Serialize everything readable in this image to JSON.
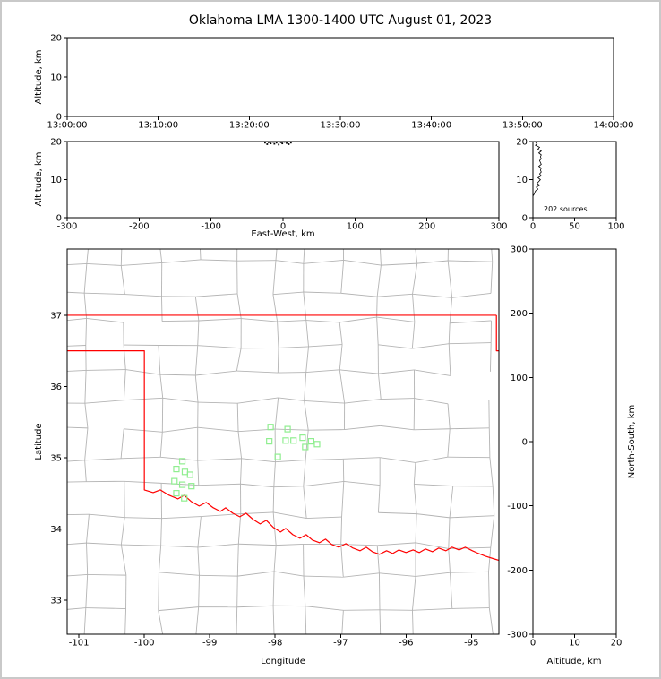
{
  "title": "Oklahoma LMA 1300-1400 UTC August 01, 2023",
  "colors": {
    "background": "#ffffff",
    "frame_border": "#c9c9c9",
    "axis": "#000000",
    "county_line": "#b4b4b4",
    "state_border": "#ff0000",
    "source_marker": "#90ee90",
    "histogram_trace": "#000000"
  },
  "chart_data": [
    {
      "id": "time_height",
      "type": "scatter",
      "xlabel": "",
      "ylabel": "Altitude, km",
      "x_tick_labels": [
        "13:00:00",
        "13:10:00",
        "13:20:00",
        "13:30:00",
        "13:40:00",
        "13:50:00",
        "14:00:00"
      ],
      "ylim": [
        0,
        20
      ],
      "yticks": [
        0,
        10,
        20
      ],
      "points": []
    },
    {
      "id": "ew_height",
      "type": "scatter",
      "xlabel": "East-West, km",
      "ylabel": "Altitude, km",
      "xlim": [
        -300,
        300
      ],
      "xticks": [
        -300,
        -200,
        -100,
        0,
        100,
        200,
        300
      ],
      "ylim": [
        0,
        20
      ],
      "yticks": [
        0,
        10,
        20
      ],
      "points": [
        [
          -25,
          19.7
        ],
        [
          -22,
          19.3
        ],
        [
          -20,
          19.8
        ],
        [
          -17,
          19.5
        ],
        [
          -14,
          19.9
        ],
        [
          -12,
          19.4
        ],
        [
          -9,
          19.7
        ],
        [
          -6,
          19.2
        ],
        [
          -3,
          19.8
        ],
        [
          -1,
          19.5
        ],
        [
          2,
          19.9
        ],
        [
          5,
          19.6
        ],
        [
          8,
          19.3
        ],
        [
          11,
          19.7
        ]
      ]
    },
    {
      "id": "altitude_histogram",
      "type": "line",
      "annotation": "202 sources",
      "xlim": [
        0,
        100
      ],
      "xticks": [
        0,
        50,
        100
      ],
      "ylim": [
        0,
        20
      ],
      "yticks": [
        0,
        10,
        20
      ],
      "altitudes": [
        20,
        19.5,
        19,
        18.5,
        18,
        17.5,
        17,
        16.5,
        16,
        15.5,
        15,
        14.5,
        14,
        13.5,
        13,
        12.5,
        12,
        11.5,
        11,
        10.5,
        10,
        9.5,
        9,
        8.5,
        8,
        7.5,
        7,
        6.5,
        6
      ],
      "counts": [
        2,
        5,
        3,
        8,
        6,
        10,
        7,
        10,
        9,
        10,
        8,
        9,
        10,
        7,
        10,
        9,
        10,
        8,
        10,
        6,
        9,
        7,
        5,
        8,
        4,
        6,
        3,
        2,
        1
      ]
    },
    {
      "id": "plan_map",
      "type": "scatter",
      "xlabel": "Longitude",
      "ylabel": "Latitude",
      "xlim": [
        -101.18,
        -94.58
      ],
      "xticks": [
        -101,
        -100,
        -99,
        -98,
        -97,
        -96,
        -95
      ],
      "ylim": [
        32.52,
        37.93
      ],
      "yticks": [
        33,
        34,
        35,
        36,
        37
      ],
      "sources": [
        [
          -99.42,
          34.95
        ],
        [
          -99.51,
          34.84
        ],
        [
          -99.38,
          34.8
        ],
        [
          -99.3,
          34.76
        ],
        [
          -99.54,
          34.67
        ],
        [
          -99.42,
          34.62
        ],
        [
          -99.28,
          34.6
        ],
        [
          -99.51,
          34.5
        ],
        [
          -99.39,
          34.43
        ],
        [
          -98.07,
          35.43
        ],
        [
          -97.81,
          35.4
        ],
        [
          -97.84,
          35.24
        ],
        [
          -97.58,
          35.28
        ],
        [
          -97.72,
          35.24
        ],
        [
          -98.09,
          35.23
        ],
        [
          -97.45,
          35.23
        ],
        [
          -97.36,
          35.19
        ],
        [
          -97.54,
          35.15
        ],
        [
          -97.96,
          35.01
        ]
      ],
      "state_border": {
        "kansas_line": [
          [
            -101.18,
            37
          ],
          [
            -94.618,
            37
          ]
        ],
        "missouri_corner": [
          [
            -94.618,
            37
          ],
          [
            -94.618,
            36.5
          ],
          [
            -94.45,
            36.5
          ]
        ],
        "west_and_red_river": [
          [
            -101.18,
            36.5
          ],
          [
            -100,
            36.5
          ],
          [
            -100,
            34.547
          ],
          [
            -99.865,
            34.509
          ],
          [
            -99.757,
            34.547
          ],
          [
            -99.622,
            34.472
          ],
          [
            -99.486,
            34.421
          ],
          [
            -99.392,
            34.472
          ],
          [
            -99.284,
            34.384
          ],
          [
            -99.162,
            34.321
          ],
          [
            -99.054,
            34.371
          ],
          [
            -98.946,
            34.296
          ],
          [
            -98.838,
            34.245
          ],
          [
            -98.757,
            34.296
          ],
          [
            -98.649,
            34.22
          ],
          [
            -98.541,
            34.17
          ],
          [
            -98.446,
            34.22
          ],
          [
            -98.338,
            34.132
          ],
          [
            -98.23,
            34.069
          ],
          [
            -98.135,
            34.119
          ],
          [
            -98.027,
            34.019
          ],
          [
            -97.919,
            33.956
          ],
          [
            -97.838,
            34.006
          ],
          [
            -97.73,
            33.918
          ],
          [
            -97.622,
            33.868
          ],
          [
            -97.527,
            33.918
          ],
          [
            -97.432,
            33.843
          ],
          [
            -97.324,
            33.805
          ],
          [
            -97.23,
            33.855
          ],
          [
            -97.135,
            33.78
          ],
          [
            -97.027,
            33.742
          ],
          [
            -96.919,
            33.792
          ],
          [
            -96.811,
            33.73
          ],
          [
            -96.703,
            33.692
          ],
          [
            -96.608,
            33.742
          ],
          [
            -96.514,
            33.679
          ],
          [
            -96.405,
            33.642
          ],
          [
            -96.297,
            33.692
          ],
          [
            -96.203,
            33.654
          ],
          [
            -96.108,
            33.704
          ],
          [
            -96.0,
            33.667
          ],
          [
            -95.892,
            33.704
          ],
          [
            -95.797,
            33.667
          ],
          [
            -95.703,
            33.717
          ],
          [
            -95.595,
            33.679
          ],
          [
            -95.5,
            33.73
          ],
          [
            -95.392,
            33.692
          ],
          [
            -95.297,
            33.742
          ],
          [
            -95.189,
            33.704
          ],
          [
            -95.095,
            33.742
          ],
          [
            -94.986,
            33.692
          ],
          [
            -94.892,
            33.654
          ],
          [
            -94.784,
            33.616
          ],
          [
            -94.66,
            33.58
          ],
          [
            -94.55,
            33.55
          ]
        ]
      }
    },
    {
      "id": "ns_height",
      "type": "scatter",
      "xlabel": "Altitude, km",
      "ylabel": "North-South, km",
      "xlim": [
        0,
        20
      ],
      "xticks": [
        0,
        10,
        20
      ],
      "ylim": [
        -300,
        300
      ],
      "yticks": [
        -300,
        -200,
        -100,
        0,
        100,
        200,
        300
      ],
      "points": []
    }
  ],
  "county_grid": {
    "seed": 11,
    "lon_step_min": 0.44,
    "lon_step_var": 0.22,
    "lat_step_min": 0.33,
    "lat_step_var": 0.17,
    "jitter": 0.09,
    "edge_prob": 0.87
  }
}
